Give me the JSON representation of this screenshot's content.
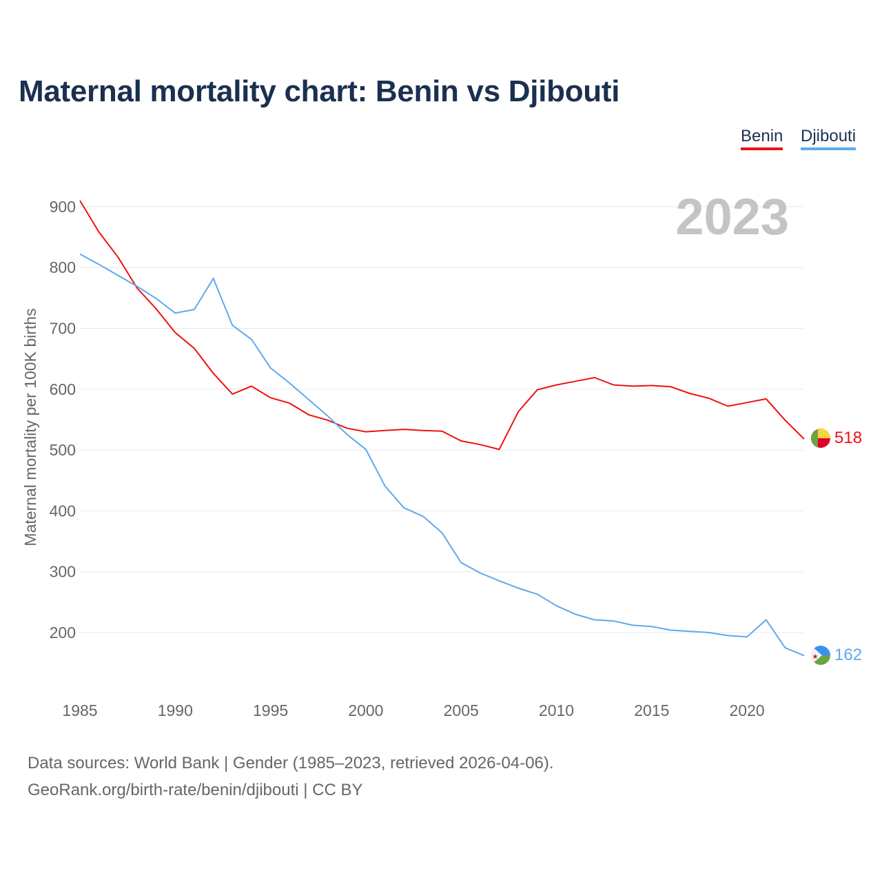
{
  "title": "Maternal mortality chart: Benin vs Djibouti",
  "year_watermark": "2023",
  "source_line1": "Data sources: World Bank | Gender (1985–2023, retrieved 2026-04-06).",
  "source_line2": "GeoRank.org/birth-rate/benin/djibouti | CC BY",
  "chart_data": {
    "type": "line",
    "title": "Maternal mortality chart: Benin vs Djibouti",
    "xlabel": "",
    "ylabel": "Maternal mortality per 100K births",
    "xlim": [
      1985,
      2023
    ],
    "ylim": [
      100,
      950
    ],
    "grid": true,
    "legend_position": "top-right",
    "x_ticks": [
      1985,
      1990,
      1995,
      2000,
      2005,
      2010,
      2015,
      2020
    ],
    "y_ticks": [
      200,
      300,
      400,
      500,
      600,
      700,
      800,
      900
    ],
    "x": [
      1985,
      1986,
      1987,
      1988,
      1989,
      1990,
      1991,
      1992,
      1993,
      1994,
      1995,
      1996,
      1997,
      1998,
      1999,
      2000,
      2001,
      2002,
      2003,
      2004,
      2005,
      2006,
      2007,
      2008,
      2009,
      2010,
      2011,
      2012,
      2013,
      2014,
      2015,
      2016,
      2017,
      2018,
      2019,
      2020,
      2021,
      2022,
      2023
    ],
    "series": [
      {
        "name": "Benin",
        "color": "#ee1111",
        "end_label": "518",
        "values": [
          910,
          858,
          817,
          766,
          732,
          693,
          667,
          626,
          592,
          605,
          586,
          577,
          558,
          549,
          536,
          530,
          532,
          534,
          532,
          531,
          515,
          509,
          501,
          563,
          599,
          607,
          613,
          619,
          607,
          605,
          606,
          604,
          593,
          585,
          572,
          578,
          584,
          549,
          518
        ]
      },
      {
        "name": "Djibouti",
        "color": "#5ea8ee",
        "end_label": "162",
        "values": [
          822,
          805,
          787,
          769,
          749,
          725,
          731,
          782,
          705,
          682,
          635,
          610,
          583,
          556,
          526,
          501,
          441,
          405,
          391,
          364,
          315,
          298,
          285,
          273,
          263,
          244,
          230,
          221,
          219,
          212,
          210,
          204,
          202,
          200,
          195,
          193,
          221,
          175,
          162
        ]
      }
    ]
  }
}
